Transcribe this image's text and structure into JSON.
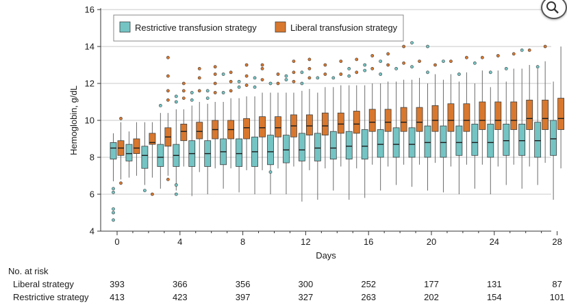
{
  "chart_data": {
    "type": "box",
    "ylabel": "Hemoglobin, g/dL",
    "xlabel": "Days",
    "ylim": [
      4,
      16
    ],
    "yticks": [
      4,
      6,
      8,
      10,
      12,
      14,
      16
    ],
    "xticks": [
      0,
      4,
      8,
      12,
      16,
      20,
      24,
      28
    ],
    "grid": "horizontal",
    "legend_position": "top-left",
    "legend": [
      {
        "name": "Restrictive transfusion strategy",
        "color": "#74c4c4"
      },
      {
        "name": "Liberal transfusion strategy",
        "color": "#d8782e"
      }
    ],
    "days": [
      0,
      1,
      2,
      3,
      4,
      5,
      6,
      7,
      8,
      9,
      10,
      11,
      12,
      13,
      14,
      15,
      16,
      17,
      18,
      19,
      20,
      21,
      22,
      23,
      24,
      25,
      26,
      27,
      28
    ],
    "restrictive": [
      {
        "day": 0,
        "whisker_low": 6.7,
        "q1": 7.9,
        "median": 8.5,
        "q3": 8.8,
        "whisker_high": 9.3,
        "outliers": [
          6.3,
          6.1,
          5.2,
          5.0,
          4.6
        ]
      },
      {
        "day": 1,
        "whisker_low": 6.9,
        "q1": 7.8,
        "median": 8.2,
        "q3": 8.7,
        "whisker_high": 9.4,
        "outliers": []
      },
      {
        "day": 2,
        "whisker_low": 6.5,
        "q1": 7.4,
        "median": 8.1,
        "q3": 8.6,
        "whisker_high": 9.9,
        "outliers": [
          6.2
        ]
      },
      {
        "day": 3,
        "whisker_low": 6.3,
        "q1": 7.5,
        "median": 8.0,
        "q3": 8.7,
        "whisker_high": 10.4,
        "outliers": [
          10.8
        ]
      },
      {
        "day": 4,
        "whisker_low": 6.2,
        "q1": 7.5,
        "median": 8.1,
        "q3": 8.7,
        "whisker_high": 10.6,
        "outliers": [
          6.0,
          6.5,
          11.0,
          11.3
        ]
      },
      {
        "day": 5,
        "whisker_low": 5.9,
        "q1": 7.5,
        "median": 8.2,
        "q3": 8.9,
        "whisker_high": 10.8,
        "outliers": [
          11.1,
          11.5
        ]
      },
      {
        "day": 6,
        "whisker_low": 6.0,
        "q1": 7.5,
        "median": 8.2,
        "q3": 8.9,
        "whisker_high": 10.9,
        "outliers": [
          11.2,
          11.6
        ]
      },
      {
        "day": 7,
        "whisker_low": 6.3,
        "q1": 7.6,
        "median": 8.3,
        "q3": 9.0,
        "whisker_high": 11.0,
        "outliers": [
          11.5,
          12.5
        ]
      },
      {
        "day": 8,
        "whisker_low": 6.1,
        "q1": 7.5,
        "median": 8.2,
        "q3": 9.0,
        "whisker_high": 11.2,
        "outliers": [
          11.8,
          12.1
        ]
      },
      {
        "day": 9,
        "whisker_low": 6.0,
        "q1": 7.5,
        "median": 8.3,
        "q3": 9.1,
        "whisker_high": 11.3,
        "outliers": [
          11.8,
          12.3
        ]
      },
      {
        "day": 10,
        "whisker_low": 6.0,
        "q1": 7.6,
        "median": 8.3,
        "q3": 9.2,
        "whisker_high": 11.5,
        "outliers": [
          7.2,
          12.0
        ]
      },
      {
        "day": 11,
        "whisker_low": 6.0,
        "q1": 7.7,
        "median": 8.4,
        "q3": 9.2,
        "whisker_high": 11.5,
        "outliers": [
          12.2,
          12.4
        ]
      },
      {
        "day": 12,
        "whisker_low": 5.6,
        "q1": 7.8,
        "median": 8.4,
        "q3": 9.3,
        "whisker_high": 11.6,
        "outliers": [
          12.0,
          12.6
        ]
      },
      {
        "day": 13,
        "whisker_low": 5.7,
        "q1": 7.8,
        "median": 8.5,
        "q3": 9.3,
        "whisker_high": 11.5,
        "outliers": [
          12.3
        ]
      },
      {
        "day": 14,
        "whisker_low": 6.2,
        "q1": 7.9,
        "median": 8.5,
        "q3": 9.4,
        "whisker_high": 11.8,
        "outliers": [
          12.3
        ]
      },
      {
        "day": 15,
        "whisker_low": 5.7,
        "q1": 7.9,
        "median": 8.6,
        "q3": 9.4,
        "whisker_high": 11.9,
        "outliers": [
          12.4,
          12.8
        ]
      },
      {
        "day": 16,
        "whisker_low": 5.8,
        "q1": 7.9,
        "median": 8.6,
        "q3": 9.5,
        "whisker_high": 11.9,
        "outliers": [
          12.7,
          13.0
        ]
      },
      {
        "day": 17,
        "whisker_low": 6.2,
        "q1": 8.0,
        "median": 8.7,
        "q3": 9.5,
        "whisker_high": 12.0,
        "outliers": [
          12.5,
          13.2
        ]
      },
      {
        "day": 18,
        "whisker_low": 6.5,
        "q1": 8.0,
        "median": 8.7,
        "q3": 9.6,
        "whisker_high": 12.1,
        "outliers": [
          12.8
        ]
      },
      {
        "day": 19,
        "whisker_low": 6.4,
        "q1": 8.0,
        "median": 8.7,
        "q3": 9.6,
        "whisker_high": 12.2,
        "outliers": [
          12.9,
          14.2
        ]
      },
      {
        "day": 20,
        "whisker_low": 6.2,
        "q1": 8.0,
        "median": 8.8,
        "q3": 9.7,
        "whisker_high": 12.0,
        "outliers": [
          12.6,
          14.0
        ]
      },
      {
        "day": 21,
        "whisker_low": 6.1,
        "q1": 8.0,
        "median": 8.8,
        "q3": 9.7,
        "whisker_high": 12.2,
        "outliers": [
          13.2
        ]
      },
      {
        "day": 22,
        "whisker_low": 6.0,
        "q1": 8.1,
        "median": 8.8,
        "q3": 9.7,
        "whisker_high": 12.1,
        "outliers": [
          12.5
        ]
      },
      {
        "day": 23,
        "whisker_low": 6.3,
        "q1": 8.1,
        "median": 8.8,
        "q3": 9.8,
        "whisker_high": 12.0,
        "outliers": [
          13.1
        ]
      },
      {
        "day": 24,
        "whisker_low": 6.0,
        "q1": 8.0,
        "median": 8.8,
        "q3": 9.8,
        "whisker_high": 11.8,
        "outliers": [
          12.6
        ]
      },
      {
        "day": 25,
        "whisker_low": 6.5,
        "q1": 8.1,
        "median": 8.9,
        "q3": 9.8,
        "whisker_high": 12.1,
        "outliers": [
          12.8
        ]
      },
      {
        "day": 26,
        "whisker_low": 6.3,
        "q1": 8.1,
        "median": 8.9,
        "q3": 9.8,
        "whisker_high": 12.8,
        "outliers": [
          13.8
        ]
      },
      {
        "day": 27,
        "whisker_low": 6.5,
        "q1": 8.0,
        "median": 8.9,
        "q3": 9.9,
        "whisker_high": 12.8,
        "outliers": [
          12.9
        ]
      },
      {
        "day": 28,
        "whisker_low": 5.7,
        "q1": 8.1,
        "median": 9.0,
        "q3": 10.0,
        "whisker_high": 12.1,
        "outliers": []
      }
    ],
    "liberal": [
      {
        "day": 0,
        "whisker_low": 6.8,
        "q1": 8.1,
        "median": 8.5,
        "q3": 8.9,
        "whisker_high": 9.9,
        "outliers": [
          10.1,
          6.6
        ]
      },
      {
        "day": 1,
        "whisker_low": 7.0,
        "q1": 8.2,
        "median": 8.5,
        "q3": 9.0,
        "whisker_high": 9.9,
        "outliers": []
      },
      {
        "day": 2,
        "whisker_low": 6.9,
        "q1": 8.7,
        "median": 8.8,
        "q3": 9.3,
        "whisker_high": 9.9,
        "outliers": [
          6.0
        ]
      },
      {
        "day": 3,
        "whisker_low": 7.0,
        "q1": 8.6,
        "median": 9.1,
        "q3": 9.6,
        "whisker_high": 10.4,
        "outliers": [
          6.8,
          11.1,
          11.6,
          12.4,
          13.4
        ]
      },
      {
        "day": 4,
        "whisker_low": 7.5,
        "q1": 8.9,
        "median": 9.4,
        "q3": 9.8,
        "whisker_high": 10.6,
        "outliers": [
          11.2,
          11.6,
          12.0
        ]
      },
      {
        "day": 5,
        "whisker_low": 7.2,
        "q1": 9.0,
        "median": 9.4,
        "q3": 9.9,
        "whisker_high": 11.0,
        "outliers": [
          11.6,
          12.3,
          12.8
        ]
      },
      {
        "day": 6,
        "whisker_low": 7.4,
        "q1": 9.0,
        "median": 9.5,
        "q3": 10.0,
        "whisker_high": 11.0,
        "outliers": [
          11.5,
          12.0,
          12.5,
          12.9
        ]
      },
      {
        "day": 7,
        "whisker_low": 7.4,
        "q1": 9.0,
        "median": 9.5,
        "q3": 10.0,
        "whisker_high": 11.2,
        "outliers": [
          11.6,
          12.1,
          12.6
        ]
      },
      {
        "day": 8,
        "whisker_low": 7.3,
        "q1": 9.0,
        "median": 9.6,
        "q3": 10.1,
        "whisker_high": 11.3,
        "outliers": [
          11.9,
          12.4,
          13.0
        ]
      },
      {
        "day": 9,
        "whisker_low": 7.3,
        "q1": 9.1,
        "median": 9.6,
        "q3": 10.2,
        "whisker_high": 11.5,
        "outliers": [
          12.2,
          12.8,
          13.0
        ]
      },
      {
        "day": 10,
        "whisker_low": 7.4,
        "q1": 9.1,
        "median": 9.6,
        "q3": 10.2,
        "whisker_high": 11.5,
        "outliers": [
          12.0,
          12.5
        ]
      },
      {
        "day": 11,
        "whisker_low": 7.5,
        "q1": 9.1,
        "median": 9.7,
        "q3": 10.3,
        "whisker_high": 11.5,
        "outliers": [
          12.1,
          12.6,
          13.2
        ]
      },
      {
        "day": 12,
        "whisker_low": 7.3,
        "q1": 9.2,
        "median": 9.7,
        "q3": 10.3,
        "whisker_high": 11.7,
        "outliers": [
          12.3,
          12.8,
          13.3
        ]
      },
      {
        "day": 13,
        "whisker_low": 7.4,
        "q1": 9.2,
        "median": 9.7,
        "q3": 10.4,
        "whisker_high": 11.8,
        "outliers": [
          12.5,
          13.0
        ]
      },
      {
        "day": 14,
        "whisker_low": 7.5,
        "q1": 9.3,
        "median": 9.8,
        "q3": 10.4,
        "whisker_high": 11.9,
        "outliers": [
          12.5,
          13.2
        ]
      },
      {
        "day": 15,
        "whisker_low": 7.4,
        "q1": 9.3,
        "median": 9.8,
        "q3": 10.5,
        "whisker_high": 11.9,
        "outliers": [
          12.6,
          13.3
        ]
      },
      {
        "day": 16,
        "whisker_low": 7.6,
        "q1": 9.4,
        "median": 9.9,
        "q3": 10.6,
        "whisker_high": 12.0,
        "outliers": [
          12.8,
          13.5
        ]
      },
      {
        "day": 17,
        "whisker_low": 7.5,
        "q1": 9.4,
        "median": 9.9,
        "q3": 10.6,
        "whisker_high": 12.1,
        "outliers": [
          13.0,
          13.6
        ]
      },
      {
        "day": 18,
        "whisker_low": 7.6,
        "q1": 9.4,
        "median": 9.9,
        "q3": 10.7,
        "whisker_high": 12.2,
        "outliers": [
          13.1,
          14.0
        ]
      },
      {
        "day": 19,
        "whisker_low": 7.6,
        "q1": 9.4,
        "median": 9.9,
        "q3": 10.7,
        "whisker_high": 12.3,
        "outliers": [
          13.2
        ]
      },
      {
        "day": 20,
        "whisker_low": 7.7,
        "q1": 9.4,
        "median": 10.0,
        "q3": 10.8,
        "whisker_high": 12.5,
        "outliers": [
          13.0
        ]
      },
      {
        "day": 21,
        "whisker_low": 7.5,
        "q1": 9.4,
        "median": 10.0,
        "q3": 10.9,
        "whisker_high": 12.5,
        "outliers": [
          13.2
        ]
      },
      {
        "day": 22,
        "whisker_low": 7.6,
        "q1": 9.4,
        "median": 10.0,
        "q3": 10.9,
        "whisker_high": 12.6,
        "outliers": [
          13.4
        ]
      },
      {
        "day": 23,
        "whisker_low": 7.6,
        "q1": 9.5,
        "median": 10.0,
        "q3": 11.0,
        "whisker_high": 12.7,
        "outliers": [
          13.4
        ]
      },
      {
        "day": 24,
        "whisker_low": 7.5,
        "q1": 9.5,
        "median": 10.0,
        "q3": 11.0,
        "whisker_high": 12.7,
        "outliers": [
          13.5
        ]
      },
      {
        "day": 25,
        "whisker_low": 7.6,
        "q1": 9.5,
        "median": 10.0,
        "q3": 11.0,
        "whisker_high": 12.8,
        "outliers": [
          13.6
        ]
      },
      {
        "day": 26,
        "whisker_low": 7.5,
        "q1": 9.5,
        "median": 10.1,
        "q3": 11.1,
        "whisker_high": 13.0,
        "outliers": [
          13.8
        ]
      },
      {
        "day": 27,
        "whisker_low": 7.7,
        "q1": 9.5,
        "median": 10.1,
        "q3": 11.1,
        "whisker_high": 13.2,
        "outliers": [
          14.0
        ]
      },
      {
        "day": 28,
        "whisker_low": 7.4,
        "q1": 9.5,
        "median": 10.1,
        "q3": 11.2,
        "whisker_high": 14.0,
        "outliers": []
      }
    ],
    "no_at_risk": {
      "heading": "No. at risk",
      "days": [
        0,
        4,
        8,
        12,
        16,
        20,
        24,
        28
      ],
      "rows": [
        {
          "label": "Liberal strategy",
          "values": [
            393,
            366,
            356,
            300,
            252,
            177,
            131,
            87
          ]
        },
        {
          "label": "Restrictive strategy",
          "values": [
            413,
            423,
            397,
            327,
            263,
            202,
            154,
            101
          ]
        }
      ]
    }
  },
  "zoom": {
    "icon": "magnifier-icon"
  }
}
